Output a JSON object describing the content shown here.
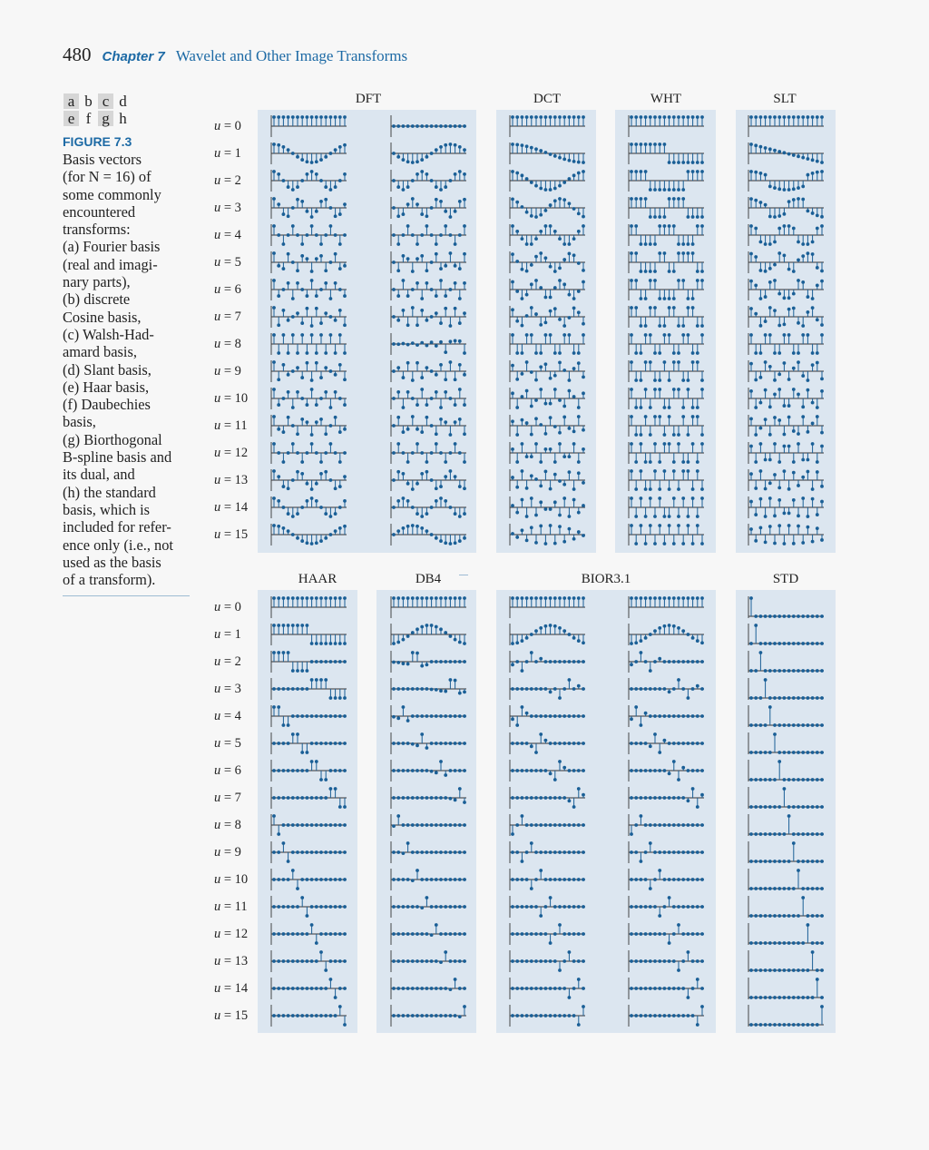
{
  "header": {
    "page_number": "480",
    "chapter_label": "Chapter 7",
    "chapter_title": "Wavelet and Other Image Transforms"
  },
  "panel_letters": {
    "row1": [
      "a",
      "b",
      "c",
      "d"
    ],
    "row2": [
      "e",
      "f",
      "g",
      "h"
    ]
  },
  "figure": {
    "label": "FIGURE 7.3",
    "caption": "Basis vectors\n(for N = 16) of\nsome commonly\nencountered\ntransforms:\n(a) Fourier basis\n(real and imagi-\nnary parts),\n(b) discrete\nCosine basis,\n(c) Walsh-Had-\namard basis,\n(d) Slant basis,\n(e) Haar basis,\n(f) Daubechies\nbasis,\n(g) Biorthogonal\nB-spline basis and\nits dual, and\n(h) the standard\nbasis, which is\nincluded for refer-\nence only (i.e., not\nused as the basis\nof a transform)."
  },
  "column_titles": {
    "dft": "DFT",
    "dct": "DCT",
    "wht": "WHT",
    "slt": "SLT",
    "haar": "HAAR",
    "db4": "DB4",
    "bior": "BIOR3.1",
    "std": "STD"
  },
  "row_labels": [
    "u = 0",
    "u = 1",
    "u = 2",
    "u = 3",
    "u = 4",
    "u = 5",
    "u = 6",
    "u = 7",
    "u = 8",
    "u = 9",
    "u = 10",
    "u = 11",
    "u = 12",
    "u = 13",
    "u = 14",
    "u = 15"
  ],
  "colors": {
    "accent": "#1d6aa5",
    "panel_bg": "#dce6f0",
    "stem": "#1a5f96",
    "axis": "#333333"
  },
  "basis": {
    "N": 16,
    "plot_types": [
      "dft_real",
      "dft_imag",
      "dct",
      "wht",
      "slt",
      "haar",
      "db4",
      "bior",
      "bior_dual",
      "std"
    ]
  }
}
